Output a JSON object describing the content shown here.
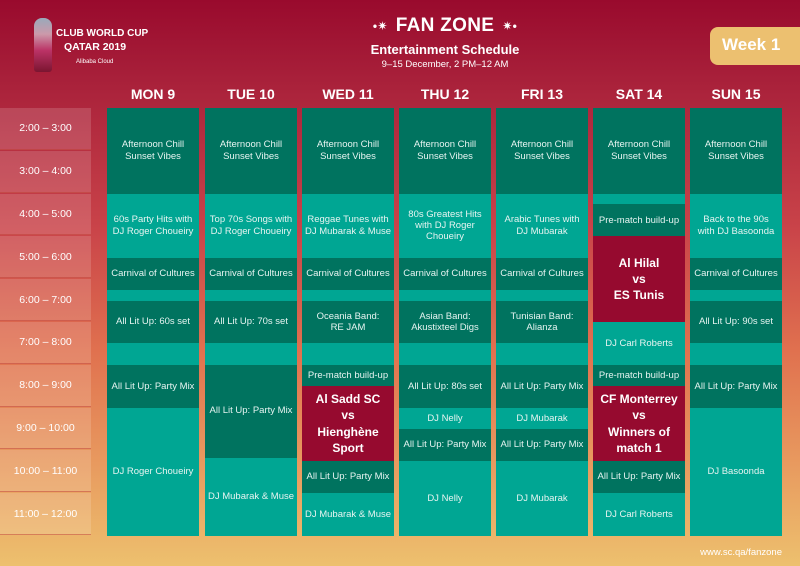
{
  "logo": {
    "line1": "CLUB WORLD CUP",
    "line2": "QATAR 2019",
    "sponsor": "Alibaba Cloud"
  },
  "header": {
    "title": "FAN ZONE",
    "subtitle": "Entertainment Schedule",
    "dates": "9–15 December, 2 PM–12 AM",
    "week": "Week 1"
  },
  "colors": {
    "dark": "#00735f",
    "light": "#00a693",
    "match": "#960a2f",
    "week_badge": "#ecc070"
  },
  "times": [
    "2:00 – 3:00",
    "3:00 – 4:00",
    "4:00 – 5:00",
    "5:00 – 6:00",
    "6:00 – 7:00",
    "7:00 – 8:00",
    "8:00 – 9:00",
    "9:00 – 10:00",
    "10:00 – 11:00",
    "11:00 – 12:00"
  ],
  "days": [
    {
      "label": "MON 9",
      "events": [
        {
          "start": "14:00",
          "end": "16:00",
          "type": "dark",
          "text": "Afternoon Chill\nSunset Vibes"
        },
        {
          "start": "16:00",
          "end": "17:30",
          "type": "light",
          "text": "60s Party Hits with\nDJ Roger Choueiry"
        },
        {
          "start": "17:30",
          "end": "18:15",
          "type": "dark",
          "text": "Carnival of Cultures"
        },
        {
          "start": "18:15",
          "end": "18:30",
          "type": "light",
          "text": ""
        },
        {
          "start": "18:30",
          "end": "19:30",
          "type": "dark",
          "text": "All Lit Up: 60s set"
        },
        {
          "start": "19:30",
          "end": "20:00",
          "type": "light",
          "text": ""
        },
        {
          "start": "20:00",
          "end": "21:00",
          "type": "dark",
          "text": "All Lit Up: Party Mix"
        },
        {
          "start": "21:00",
          "end": "24:00",
          "type": "light",
          "text": "DJ Roger Choueiry"
        }
      ]
    },
    {
      "label": "TUE 10",
      "events": [
        {
          "start": "14:00",
          "end": "16:00",
          "type": "dark",
          "text": "Afternoon Chill\nSunset Vibes"
        },
        {
          "start": "16:00",
          "end": "17:30",
          "type": "light",
          "text": "Top 70s Songs with\nDJ Roger Choueiry"
        },
        {
          "start": "17:30",
          "end": "18:15",
          "type": "dark",
          "text": "Carnival of Cultures"
        },
        {
          "start": "18:15",
          "end": "18:30",
          "type": "light",
          "text": ""
        },
        {
          "start": "18:30",
          "end": "19:30",
          "type": "dark",
          "text": "All Lit Up: 70s set"
        },
        {
          "start": "19:30",
          "end": "20:00",
          "type": "light",
          "text": ""
        },
        {
          "start": "20:00",
          "end": "22:10",
          "type": "dark",
          "text": "All Lit Up: Party Mix"
        },
        {
          "start": "22:10",
          "end": "24:00",
          "type": "light",
          "text": "DJ Mubarak & Muse"
        }
      ]
    },
    {
      "label": "WED 11",
      "events": [
        {
          "start": "14:00",
          "end": "16:00",
          "type": "dark",
          "text": "Afternoon Chill\nSunset Vibes"
        },
        {
          "start": "16:00",
          "end": "17:30",
          "type": "light",
          "text": "Reggae Tunes with\nDJ Mubarak & Muse"
        },
        {
          "start": "17:30",
          "end": "18:15",
          "type": "dark",
          "text": "Carnival of Cultures"
        },
        {
          "start": "18:15",
          "end": "18:30",
          "type": "light",
          "text": ""
        },
        {
          "start": "18:30",
          "end": "19:30",
          "type": "dark",
          "text": "Oceania Band:\nRE JAM"
        },
        {
          "start": "19:30",
          "end": "20:00",
          "type": "light",
          "text": ""
        },
        {
          "start": "20:00",
          "end": "20:30",
          "type": "dark",
          "text": "Pre-match build-up"
        },
        {
          "start": "20:30",
          "end": "22:15",
          "type": "match",
          "text": "Al Sadd SC\nvs\nHienghène\nSport"
        },
        {
          "start": "22:15",
          "end": "23:00",
          "type": "dark",
          "text": "All Lit Up: Party Mix"
        },
        {
          "start": "23:00",
          "end": "24:00",
          "type": "light",
          "text": "DJ Mubarak & Muse"
        }
      ]
    },
    {
      "label": "THU 12",
      "events": [
        {
          "start": "14:00",
          "end": "16:00",
          "type": "dark",
          "text": "Afternoon Chill\nSunset Vibes"
        },
        {
          "start": "16:00",
          "end": "17:30",
          "type": "light",
          "text": "80s Greatest Hits\nwith DJ Roger\nChoueiry"
        },
        {
          "start": "17:30",
          "end": "18:15",
          "type": "dark",
          "text": "Carnival of Cultures"
        },
        {
          "start": "18:15",
          "end": "18:30",
          "type": "light",
          "text": ""
        },
        {
          "start": "18:30",
          "end": "19:30",
          "type": "dark",
          "text": "Asian Band:\nAkustixteel Digs"
        },
        {
          "start": "19:30",
          "end": "20:00",
          "type": "light",
          "text": ""
        },
        {
          "start": "20:00",
          "end": "21:00",
          "type": "dark",
          "text": "All Lit Up: 80s set"
        },
        {
          "start": "21:00",
          "end": "21:30",
          "type": "light",
          "text": "DJ Nelly"
        },
        {
          "start": "21:30",
          "end": "22:15",
          "type": "dark",
          "text": "All Lit Up: Party Mix"
        },
        {
          "start": "22:15",
          "end": "24:00",
          "type": "light",
          "text": "DJ Nelly"
        }
      ]
    },
    {
      "label": "FRI 13",
      "events": [
        {
          "start": "14:00",
          "end": "16:00",
          "type": "dark",
          "text": "Afternoon Chill\nSunset Vibes"
        },
        {
          "start": "16:00",
          "end": "17:30",
          "type": "light",
          "text": "Arabic Tunes with\nDJ Mubarak"
        },
        {
          "start": "17:30",
          "end": "18:15",
          "type": "dark",
          "text": "Carnival of Cultures"
        },
        {
          "start": "18:15",
          "end": "18:30",
          "type": "light",
          "text": ""
        },
        {
          "start": "18:30",
          "end": "19:30",
          "type": "dark",
          "text": "Tunisian Band:\nAlianza"
        },
        {
          "start": "19:30",
          "end": "20:00",
          "type": "light",
          "text": ""
        },
        {
          "start": "20:00",
          "end": "21:00",
          "type": "dark",
          "text": "All Lit Up: Party Mix"
        },
        {
          "start": "21:00",
          "end": "21:30",
          "type": "light",
          "text": "DJ Mubarak"
        },
        {
          "start": "21:30",
          "end": "22:15",
          "type": "dark",
          "text": "All Lit Up: Party Mix"
        },
        {
          "start": "22:15",
          "end": "24:00",
          "type": "light",
          "text": "DJ Mubarak"
        }
      ]
    },
    {
      "label": "SAT 14",
      "events": [
        {
          "start": "14:00",
          "end": "16:00",
          "type": "dark",
          "text": "Afternoon Chill\nSunset Vibes"
        },
        {
          "start": "16:00",
          "end": "16:15",
          "type": "light",
          "text": ""
        },
        {
          "start": "16:15",
          "end": "17:00",
          "type": "dark",
          "text": "Pre-match build-up"
        },
        {
          "start": "17:00",
          "end": "19:00",
          "type": "match",
          "text": "Al Hilal\nvs\nES Tunis"
        },
        {
          "start": "19:00",
          "end": "20:00",
          "type": "light",
          "text": "DJ Carl Roberts"
        },
        {
          "start": "20:00",
          "end": "20:30",
          "type": "dark",
          "text": "Pre-match build-up"
        },
        {
          "start": "20:30",
          "end": "22:15",
          "type": "match",
          "text": "CF Monterrey\nvs\nWinners of\nmatch 1"
        },
        {
          "start": "22:15",
          "end": "23:00",
          "type": "dark",
          "text": "All Lit Up: Party Mix"
        },
        {
          "start": "23:00",
          "end": "24:00",
          "type": "light",
          "text": "DJ Carl Roberts"
        }
      ]
    },
    {
      "label": "SUN 15",
      "events": [
        {
          "start": "14:00",
          "end": "16:00",
          "type": "dark",
          "text": "Afternoon Chill\nSunset Vibes"
        },
        {
          "start": "16:00",
          "end": "17:30",
          "type": "light",
          "text": "Back to the 90s\nwith DJ Basoonda"
        },
        {
          "start": "17:30",
          "end": "18:15",
          "type": "dark",
          "text": "Carnival of Cultures"
        },
        {
          "start": "18:15",
          "end": "18:30",
          "type": "light",
          "text": ""
        },
        {
          "start": "18:30",
          "end": "19:30",
          "type": "dark",
          "text": "All Lit Up: 90s set"
        },
        {
          "start": "19:30",
          "end": "20:00",
          "type": "light",
          "text": ""
        },
        {
          "start": "20:00",
          "end": "21:00",
          "type": "dark",
          "text": "All Lit Up: Party Mix"
        },
        {
          "start": "21:00",
          "end": "24:00",
          "type": "light",
          "text": "DJ Basoonda"
        }
      ]
    }
  ],
  "footer": "www.sc.qa/fanzone"
}
